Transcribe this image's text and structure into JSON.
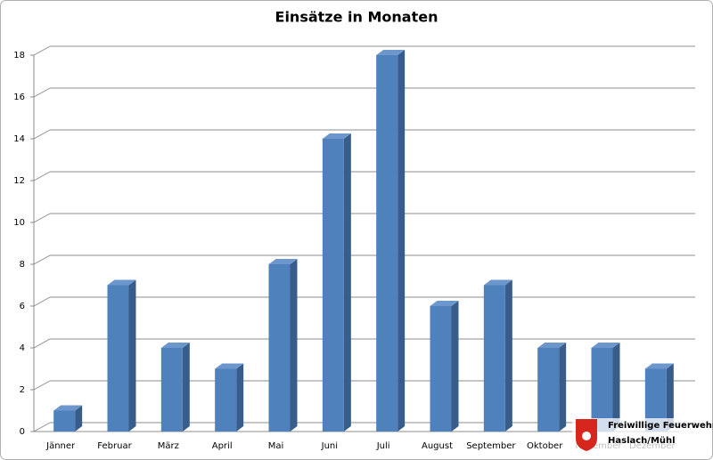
{
  "chart_data": {
    "type": "bar3d",
    "title": "Einsätze in Monaten",
    "categories": [
      "Jänner",
      "Februar",
      "März",
      "April",
      "Mai",
      "Juni",
      "Juli",
      "August",
      "September",
      "Oktober",
      "November",
      "Dezember"
    ],
    "values": [
      1,
      7,
      4,
      3,
      8,
      14,
      18,
      6,
      7,
      4,
      4,
      3
    ],
    "color": "#4f81bd",
    "ylim": [
      0,
      18
    ],
    "yticks": [
      0,
      2,
      4,
      6,
      8,
      10,
      12,
      14,
      16,
      18
    ],
    "grid": true,
    "annotations": [
      "Freiwillige Feuerwehr",
      "Haslach/Mühl"
    ]
  }
}
